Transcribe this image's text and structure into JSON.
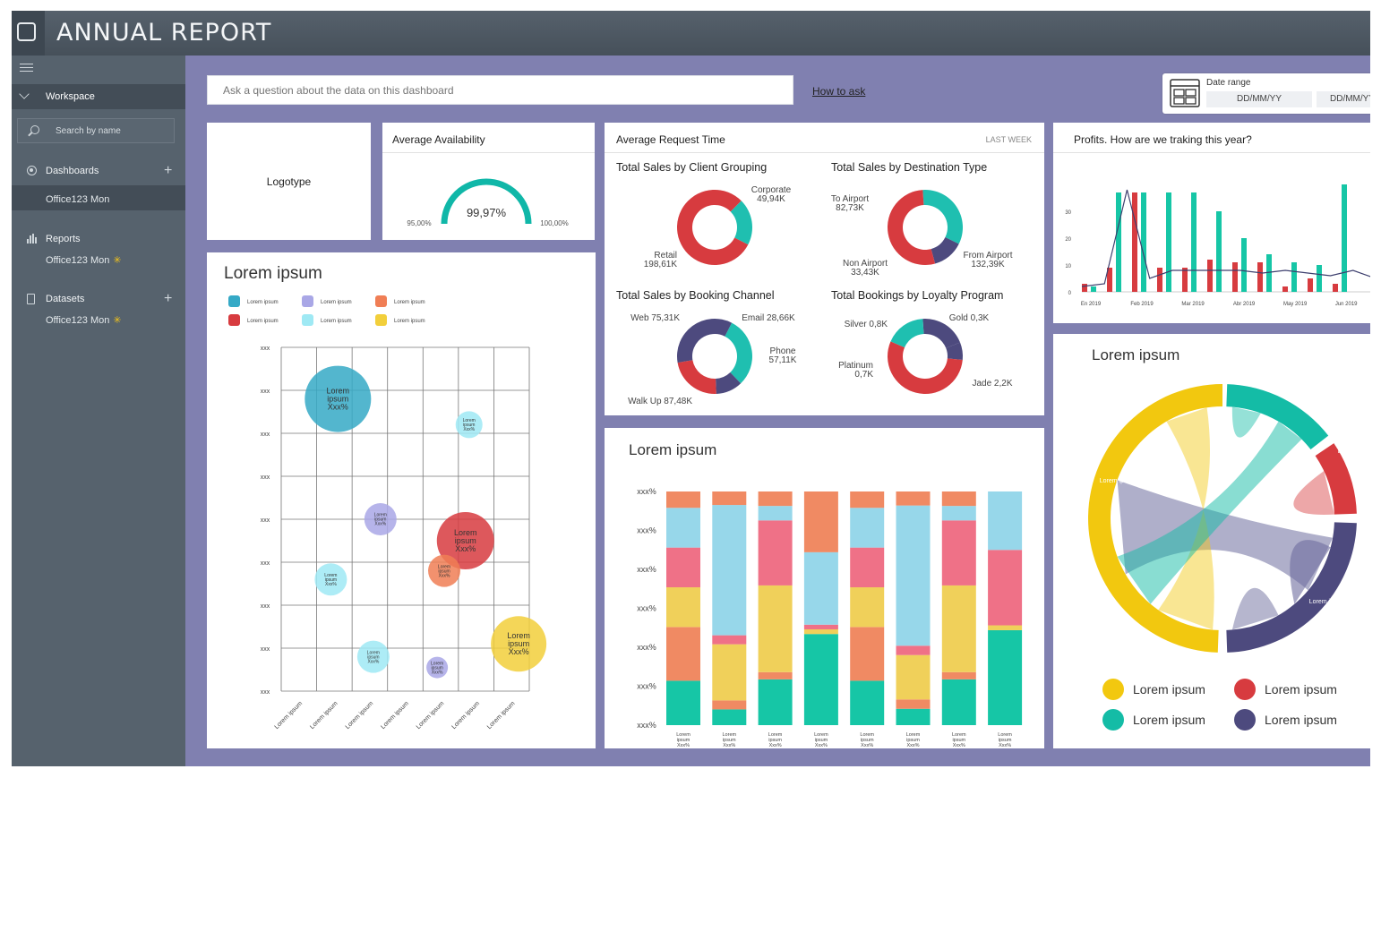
{
  "app": {
    "title": "ANNUAL REPORT"
  },
  "sidebar": {
    "workspace": "Workspace",
    "search_placeholder": "Search by name",
    "dashboards": {
      "label": "Dashboards",
      "item": "Office123 Mon"
    },
    "reports": {
      "label": "Reports",
      "item": "Office123 Mon"
    },
    "datasets": {
      "label": "Datasets",
      "item": "Office123 Mon"
    }
  },
  "toolbar": {
    "question_placeholder": "Ask a question about the data on this dashboard",
    "how_to_ask": "How to ask",
    "date_range_label": "Date range",
    "date_from": "DD/MM/YY",
    "date_to": "DD/MM/YY"
  },
  "logotype": {
    "label": "Logotype"
  },
  "availability": {
    "title": "Average Availability",
    "value": "99,97%",
    "min": "95,00%",
    "max": "100,00%",
    "fraction": 0.9
  },
  "request_time": {
    "title": "Average Request Time",
    "period": "LAST WEEK",
    "donuts": [
      {
        "title": "Total Sales by Client Grouping",
        "slices": [
          {
            "label": "Corporate",
            "value": "49,94K",
            "num": 49.94,
            "color": "#1fbfb0"
          },
          {
            "label": "Retail",
            "value": "198,61K",
            "num": 198.61,
            "color": "#d73b3f"
          }
        ]
      },
      {
        "title": "Total Sales by Destination Type",
        "slices": [
          {
            "label": "To Airport",
            "value": "82,73K",
            "num": 82.73,
            "color": "#1fbfb0"
          },
          {
            "label": "Non Airport",
            "value": "33,43K",
            "num": 33.43,
            "color": "#4d4a7e"
          },
          {
            "label": "From Airport",
            "value": "132,39K",
            "num": 132.39,
            "color": "#d73b3f"
          }
        ]
      },
      {
        "title": "Total Sales by Booking Channel",
        "slices": [
          {
            "label": "Web",
            "value": "75,31K",
            "num": 75.31,
            "color": "#1fbfb0"
          },
          {
            "label": "Email",
            "value": "28,66K",
            "num": 28.66,
            "color": "#4d4a7e"
          },
          {
            "label": "Phone",
            "value": "57,11K",
            "num": 57.11,
            "color": "#d73b3f"
          },
          {
            "label": "Walk Up",
            "value": "87,48K",
            "num": 87.48,
            "color": "#4d4a7e"
          }
        ]
      },
      {
        "title": "Total Bookings by Loyalty Program",
        "slices": [
          {
            "label": "Silver",
            "value": "0,8K",
            "num": 0.8,
            "color": "#4d4a7e"
          },
          {
            "label": "Gold",
            "value": "0,3K",
            "num": 0.3,
            "color": "#4d4a7e"
          },
          {
            "label": "Jade",
            "value": "2,2K",
            "num": 2.2,
            "color": "#d73b3f"
          },
          {
            "label": "Platinum",
            "value": "0,7K",
            "num": 0.7,
            "color": "#1fbfb0"
          }
        ]
      }
    ]
  },
  "profits": {
    "title": "Profits. How are we traking this year?"
  },
  "bubble_panel": {
    "title": "Lorem ipsum",
    "legend": [
      "Lorem ipsum",
      "Lorem ipsum",
      "Lorem ipsum",
      "Lorem ipsum",
      "Lorem ipsum",
      "Lorem ipsum"
    ],
    "legend_colors": [
      "#35a9c6",
      "#a9a7e6",
      "#f07e55",
      "#d73b3f",
      "#9fe9f4",
      "#f2cf3b"
    ]
  },
  "stacked_panel": {
    "title": "Lorem ipsum"
  },
  "chord_panel": {
    "title": "Lorem ipsum",
    "legend": [
      {
        "label": "Lorem ipsum",
        "color": "#f2c80f"
      },
      {
        "label": "Lorem ipsum",
        "color": "#d73b3f"
      },
      {
        "label": "Lorem ipsum",
        "color": "#14bca6"
      },
      {
        "label": "Lorem ipsum",
        "color": "#4d4a7e"
      }
    ],
    "arc_labels": [
      "Lorem ipsum",
      "Lorem ipsum",
      "Lorem ipsum",
      "Lorem ipsum"
    ]
  },
  "chart_data": [
    {
      "type": "scatter",
      "title": "Lorem ipsum",
      "x_categories": [
        "Lorem ipsum",
        "Lorem ipsum",
        "Lorem ipsum",
        "Lorem ipsum",
        "Lorem ipsum",
        "Lorem ipsum",
        "Lorem ipsum"
      ],
      "y_ticks": [
        "xxx",
        "xxx",
        "xxx",
        "xxx",
        "xxx",
        "xxx",
        "xxx",
        "xxx",
        "xxx"
      ],
      "points": [
        {
          "x": 1.6,
          "y": 6.8,
          "r": 37,
          "color": "#35a9c6",
          "label": [
            "Lorem",
            "ipsum",
            "Xxx%"
          ]
        },
        {
          "x": 5.3,
          "y": 6.2,
          "r": 15,
          "color": "#9fe9f4",
          "label": [
            "Lorem",
            "ipsum",
            "Xxx%"
          ]
        },
        {
          "x": 2.8,
          "y": 4.0,
          "r": 18,
          "color": "#a9a7e6",
          "label": [
            "Lorem",
            "ipsum",
            "Xxx%"
          ]
        },
        {
          "x": 5.2,
          "y": 3.5,
          "r": 32,
          "color": "#d73b3f",
          "label": [
            "Lorem",
            "ipsum",
            "Xxx%"
          ]
        },
        {
          "x": 4.6,
          "y": 2.8,
          "r": 18,
          "color": "#f07e55",
          "label": [
            "Lorem",
            "ipsum",
            "Xxx%"
          ]
        },
        {
          "x": 1.4,
          "y": 2.6,
          "r": 18,
          "color": "#9fe9f4",
          "label": [
            "Lorem",
            "ipsum",
            "Xxx%"
          ]
        },
        {
          "x": 2.6,
          "y": 0.8,
          "r": 18,
          "color": "#9fe9f4",
          "label": [
            "Lorem",
            "ipsum",
            "Xxx%"
          ]
        },
        {
          "x": 4.4,
          "y": 0.55,
          "r": 12,
          "color": "#a9a7e6",
          "label": [
            "Lorem",
            "ipsum",
            "Xxx%"
          ]
        },
        {
          "x": 6.7,
          "y": 1.1,
          "r": 31,
          "color": "#f2cf3b",
          "label": [
            "Lorem",
            "ipsum",
            "Xxx%"
          ]
        }
      ]
    },
    {
      "type": "bar",
      "title": "Lorem ipsum",
      "stacked": true,
      "y_ticks": [
        "xxx%",
        "xxx%",
        "xxx%",
        "xxx%",
        "xxx%",
        "xxx%",
        "xxx%"
      ],
      "categories": [
        "Lorem ipsum Xxx%",
        "Lorem ipsum Xxx%",
        "Lorem ipsum Xxx%",
        "Lorem ipsum Xxx%",
        "Lorem ipsum Xxx%",
        "Lorem ipsum Xxx%",
        "Lorem ipsum Xxx%",
        "Lorem ipsum Xxx%"
      ],
      "segment_colors": [
        "#16c6a6",
        "#f08a63",
        "#f0d05a",
        "#ef7187",
        "#97d7ea",
        "#f08a63"
      ],
      "bars": [
        [
          19,
          23,
          17,
          17,
          17,
          7
        ],
        [
          7,
          4,
          25,
          4,
          58,
          6
        ],
        [
          19,
          3,
          36,
          27,
          6,
          6
        ],
        [
          39,
          0,
          2,
          2,
          31,
          26
        ],
        [
          19,
          23,
          17,
          17,
          17,
          7
        ],
        [
          7,
          4,
          19,
          4,
          60,
          6
        ],
        [
          19,
          3,
          36,
          27,
          6,
          6
        ],
        [
          39,
          0,
          2,
          31,
          24,
          0
        ]
      ]
    },
    {
      "type": "bar",
      "title": "Profits. How are we traking this year?",
      "x_labels": [
        "En 2019",
        "Feb 2019",
        "Mar 2019",
        "Abr 2019",
        "May 2019",
        "Jun 2019"
      ],
      "y_ticks": [
        0,
        10,
        20,
        30
      ],
      "ylim": [
        0,
        40
      ],
      "series": [
        {
          "color": "#16c6a6",
          "values": [
            2,
            37,
            37,
            37,
            37,
            30,
            20,
            14,
            11,
            10,
            40
          ]
        },
        {
          "color": "#d73b3f",
          "values": [
            3,
            9,
            37,
            9,
            9,
            12,
            11,
            11,
            2,
            5,
            3
          ]
        }
      ],
      "line": [
        2,
        3,
        38,
        5,
        8,
        8,
        8,
        8,
        7,
        8,
        7,
        6,
        8,
        5
      ]
    }
  ]
}
